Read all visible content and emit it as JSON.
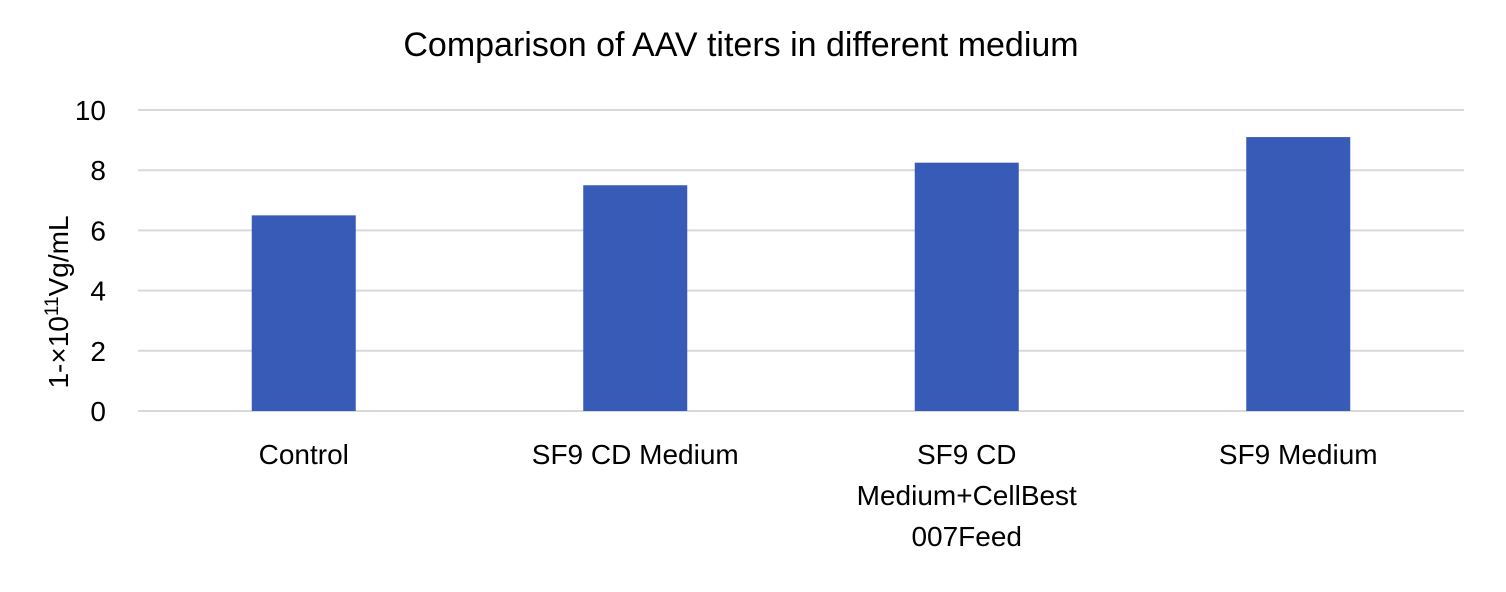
{
  "chart_data": {
    "type": "bar",
    "title": "Comparison of AAV titers in different medium",
    "ylabel": {
      "prefix": "1-×10",
      "superscript": "11",
      "suffix": "Vg/mL"
    },
    "xlabel": "",
    "categories": [
      [
        "Control"
      ],
      [
        "SF9 CD Medium"
      ],
      [
        "SF9 CD",
        "Medium+CellBest",
        "007Feed"
      ],
      [
        "SF9 Medium"
      ]
    ],
    "values": [
      6.5,
      7.5,
      8.25,
      9.1
    ],
    "ylim": [
      0,
      10
    ],
    "yticks": [
      "0",
      "2",
      "4",
      "6",
      "8",
      "10"
    ],
    "grid": true,
    "legend": "none",
    "bar_color": "#375bb6"
  }
}
